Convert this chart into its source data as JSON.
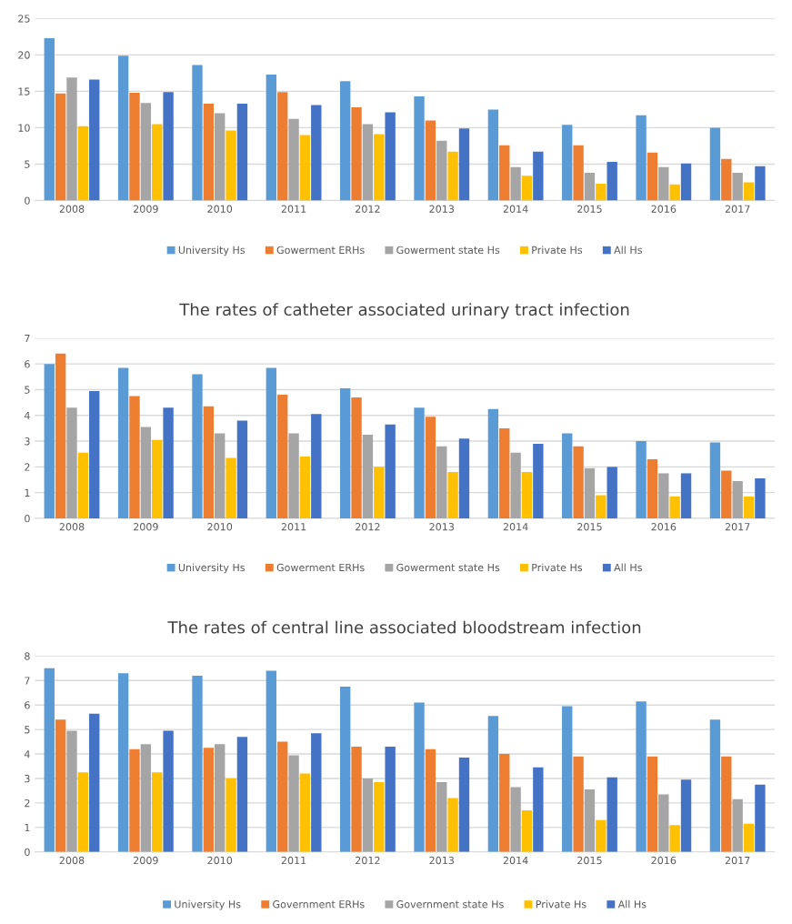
{
  "chart_data": [
    {
      "type": "bar",
      "categories": [
        "2008",
        "2009",
        "2010",
        "2011",
        "2012",
        "2013",
        "2014",
        "2015",
        "2016",
        "2017"
      ],
      "ylim": [
        0,
        25
      ],
      "yticks": [
        0,
        5,
        10,
        15,
        20,
        25
      ],
      "grid": "y",
      "legend": "bottom",
      "series": [
        {
          "name": "University Hs",
          "color": "#5b9bd5",
          "values": [
            22.3,
            19.9,
            18.6,
            17.3,
            16.4,
            14.3,
            12.5,
            10.4,
            11.7,
            10.0
          ]
        },
        {
          "name": "Gowerment ERHs",
          "color": "#ed7d31",
          "values": [
            14.7,
            14.8,
            13.3,
            14.9,
            12.8,
            11.0,
            7.6,
            7.6,
            6.6,
            5.7
          ]
        },
        {
          "name": "Gowerment state Hs",
          "color": "#a5a5a5",
          "values": [
            16.9,
            13.4,
            12.0,
            11.2,
            10.5,
            8.2,
            4.6,
            3.8,
            4.6,
            3.8
          ]
        },
        {
          "name": "Private Hs",
          "color": "#ffc000",
          "values": [
            10.2,
            10.5,
            9.6,
            9.0,
            9.1,
            6.7,
            3.4,
            2.3,
            2.2,
            2.5
          ]
        },
        {
          "name": "All Hs",
          "color": "#4472c4",
          "values": [
            16.6,
            14.9,
            13.3,
            13.1,
            12.1,
            9.9,
            6.7,
            5.3,
            5.1,
            4.7
          ]
        }
      ]
    },
    {
      "type": "bar",
      "title": "The rates of catheter associated urinary tract infection",
      "categories": [
        "2008",
        "2009",
        "2010",
        "2011",
        "2012",
        "2013",
        "2014",
        "2015",
        "2016",
        "2017"
      ],
      "ylim": [
        0,
        7
      ],
      "yticks": [
        0,
        1,
        2,
        3,
        4,
        5,
        6,
        7
      ],
      "grid": "y",
      "legend": "bottom",
      "series": [
        {
          "name": "University Hs",
          "color": "#5b9bd5",
          "values": [
            6.0,
            5.85,
            5.6,
            5.85,
            5.05,
            4.3,
            4.25,
            3.3,
            3.0,
            2.95
          ]
        },
        {
          "name": "Gowerment ERHs",
          "color": "#ed7d31",
          "values": [
            6.4,
            4.75,
            4.35,
            4.8,
            4.7,
            3.95,
            3.5,
            2.8,
            2.3,
            1.85
          ]
        },
        {
          "name": "Gowerment state Hs",
          "color": "#a5a5a5",
          "values": [
            4.3,
            3.55,
            3.3,
            3.3,
            3.25,
            2.8,
            2.55,
            1.95,
            1.75,
            1.45
          ]
        },
        {
          "name": "Private Hs",
          "color": "#ffc000",
          "values": [
            2.55,
            3.05,
            2.35,
            2.4,
            2.0,
            1.8,
            1.8,
            0.9,
            0.85,
            0.85
          ]
        },
        {
          "name": "All Hs",
          "color": "#4472c4",
          "values": [
            4.95,
            4.3,
            3.8,
            4.05,
            3.65,
            3.1,
            2.9,
            2.0,
            1.75,
            1.55
          ]
        }
      ]
    },
    {
      "type": "bar",
      "title": "The rates of central line associated bloodstream infection",
      "categories": [
        "2008",
        "2009",
        "2010",
        "2011",
        "2012",
        "2013",
        "2014",
        "2015",
        "2016",
        "2017"
      ],
      "ylim": [
        0,
        8
      ],
      "yticks": [
        0,
        1,
        2,
        3,
        4,
        5,
        6,
        7,
        8
      ],
      "grid": "y",
      "legend": "bottom",
      "series": [
        {
          "name": "University Hs",
          "color": "#5b9bd5",
          "values": [
            7.5,
            7.3,
            7.2,
            7.4,
            6.75,
            6.1,
            5.55,
            5.95,
            6.15,
            5.4
          ]
        },
        {
          "name": "Government ERHs",
          "color": "#ed7d31",
          "values": [
            5.4,
            4.2,
            4.25,
            4.5,
            4.3,
            4.2,
            4.0,
            3.9,
            3.9,
            3.9
          ]
        },
        {
          "name": "Government state Hs",
          "color": "#a5a5a5",
          "values": [
            4.95,
            4.4,
            4.4,
            3.95,
            3.0,
            2.85,
            2.65,
            2.55,
            2.35,
            2.15
          ]
        },
        {
          "name": "Private Hs",
          "color": "#ffc000",
          "values": [
            3.25,
            3.25,
            3.0,
            3.2,
            2.85,
            2.2,
            1.7,
            1.3,
            1.1,
            1.15
          ]
        },
        {
          "name": "All Hs",
          "color": "#4472c4",
          "values": [
            5.65,
            4.95,
            4.7,
            4.85,
            4.3,
            3.85,
            3.45,
            3.05,
            2.95,
            2.75
          ]
        }
      ]
    }
  ]
}
